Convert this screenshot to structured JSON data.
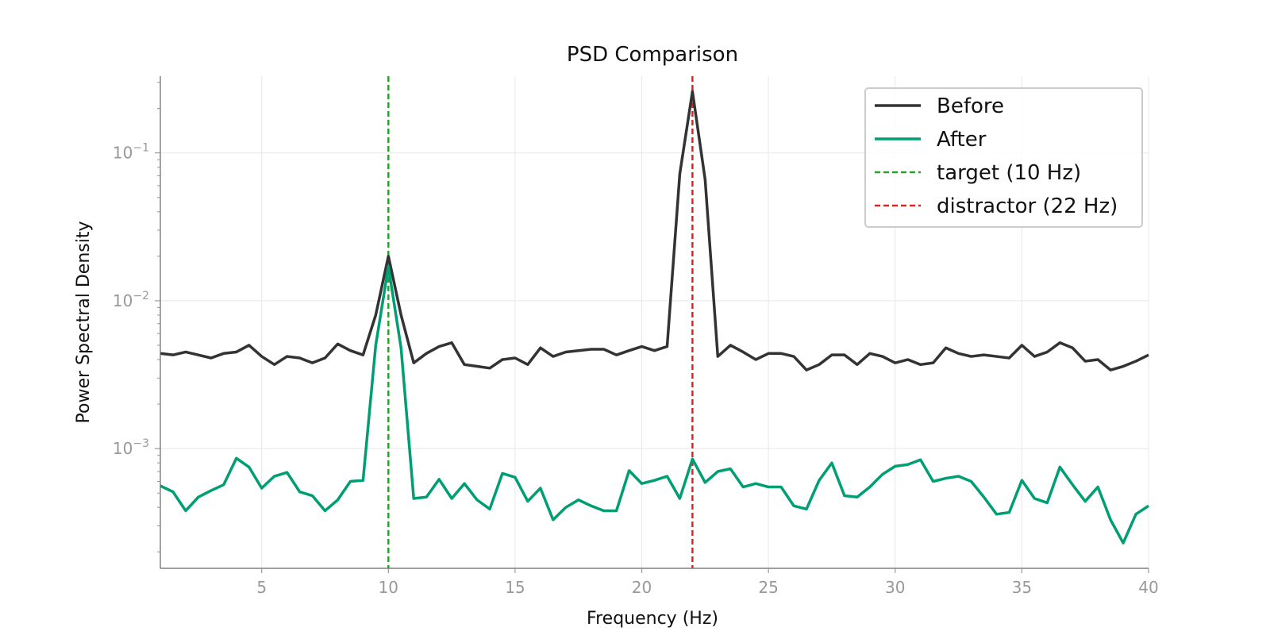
{
  "chart_data": {
    "type": "line",
    "title": "PSD Comparison",
    "xlabel": "Frequency (Hz)",
    "ylabel": "Power Spectral Density",
    "xlim": [
      1,
      40
    ],
    "ylim": [
      0.000155,
      0.33
    ],
    "yscale": "log",
    "grid": true,
    "legend_position": "top-right",
    "x_ticks": [
      5,
      10,
      15,
      20,
      25,
      30,
      35,
      40
    ],
    "x_tick_labels": [
      "5",
      "10",
      "15",
      "20",
      "25",
      "30",
      "35",
      "40"
    ],
    "y_ticks": [
      {
        "value": 0.001,
        "base": "10",
        "exp": "−3"
      },
      {
        "value": 0.01,
        "base": "10",
        "exp": "−2"
      },
      {
        "value": 0.1,
        "base": "10",
        "exp": "−1"
      }
    ],
    "x": [
      1.0,
      1.5,
      2.0,
      2.5,
      3.0,
      3.5,
      4.0,
      4.5,
      5.0,
      5.5,
      6.0,
      6.5,
      7.0,
      7.5,
      8.0,
      8.5,
      9.0,
      9.5,
      10.0,
      10.5,
      11.0,
      11.5,
      12.0,
      12.5,
      13.0,
      13.5,
      14.0,
      14.5,
      15.0,
      15.5,
      16.0,
      16.5,
      17.0,
      17.5,
      18.0,
      18.5,
      19.0,
      19.5,
      20.0,
      20.5,
      21.0,
      21.5,
      22.0,
      22.5,
      23.0,
      23.5,
      24.0,
      24.5,
      25.0,
      25.5,
      26.0,
      26.5,
      27.0,
      27.5,
      28.0,
      28.5,
      29.0,
      29.5,
      30.0,
      30.5,
      31.0,
      31.5,
      32.0,
      32.5,
      33.0,
      33.5,
      34.0,
      34.5,
      35.0,
      35.5,
      36.0,
      36.5,
      37.0,
      37.5,
      38.0,
      38.5,
      39.0,
      39.5,
      40.0
    ],
    "series": [
      {
        "name": "Before",
        "color": "#333333",
        "style": "solid",
        "values": [
          0.0044,
          0.0043,
          0.0045,
          0.0043,
          0.0041,
          0.0044,
          0.0045,
          0.005,
          0.0042,
          0.0037,
          0.0042,
          0.0041,
          0.0038,
          0.0041,
          0.0051,
          0.0046,
          0.0043,
          0.008,
          0.02,
          0.008,
          0.0038,
          0.0044,
          0.0049,
          0.0052,
          0.0037,
          0.0036,
          0.0035,
          0.004,
          0.0041,
          0.0037,
          0.0048,
          0.0042,
          0.0045,
          0.0046,
          0.0047,
          0.0047,
          0.0043,
          0.0046,
          0.0049,
          0.0046,
          0.0049,
          0.072,
          0.26,
          0.066,
          0.0042,
          0.005,
          0.0045,
          0.004,
          0.0044,
          0.0044,
          0.0042,
          0.0034,
          0.0037,
          0.0043,
          0.0043,
          0.0037,
          0.0044,
          0.0042,
          0.0038,
          0.004,
          0.0037,
          0.0038,
          0.0048,
          0.0044,
          0.0042,
          0.0043,
          0.0042,
          0.0041,
          0.005,
          0.0042,
          0.0045,
          0.0052,
          0.0048,
          0.0039,
          0.004,
          0.0034,
          0.0036,
          0.0039,
          0.0043
        ]
      },
      {
        "name": "After",
        "color": "#009E73",
        "style": "solid",
        "values": [
          0.00056,
          0.00051,
          0.00038,
          0.00047,
          0.00052,
          0.00057,
          0.00086,
          0.00075,
          0.00054,
          0.00065,
          0.00069,
          0.00051,
          0.00048,
          0.00038,
          0.00045,
          0.0006,
          0.00061,
          0.005,
          0.017,
          0.0048,
          0.00046,
          0.00047,
          0.00062,
          0.00046,
          0.00058,
          0.00045,
          0.00039,
          0.00068,
          0.00064,
          0.00044,
          0.00054,
          0.00033,
          0.0004,
          0.00045,
          0.00041,
          0.00038,
          0.00038,
          0.00071,
          0.00058,
          0.00061,
          0.00065,
          0.00046,
          0.00085,
          0.00059,
          0.0007,
          0.00073,
          0.00055,
          0.00058,
          0.00055,
          0.00055,
          0.00041,
          0.00039,
          0.00061,
          0.0008,
          0.00048,
          0.00047,
          0.00055,
          0.00067,
          0.00076,
          0.00078,
          0.00084,
          0.0006,
          0.00063,
          0.00065,
          0.0006,
          0.00047,
          0.00036,
          0.00037,
          0.00061,
          0.00046,
          0.00043,
          0.00075,
          0.00057,
          0.00044,
          0.00055,
          0.00033,
          0.00023,
          0.00036,
          0.00041
        ]
      }
    ],
    "vlines": [
      {
        "name": "target (10 Hz)",
        "x": 10,
        "color": "#2ca02c",
        "style": "dashed"
      },
      {
        "name": "distractor (22 Hz)",
        "x": 22,
        "color": "#d62728",
        "style": "dashed"
      }
    ]
  }
}
